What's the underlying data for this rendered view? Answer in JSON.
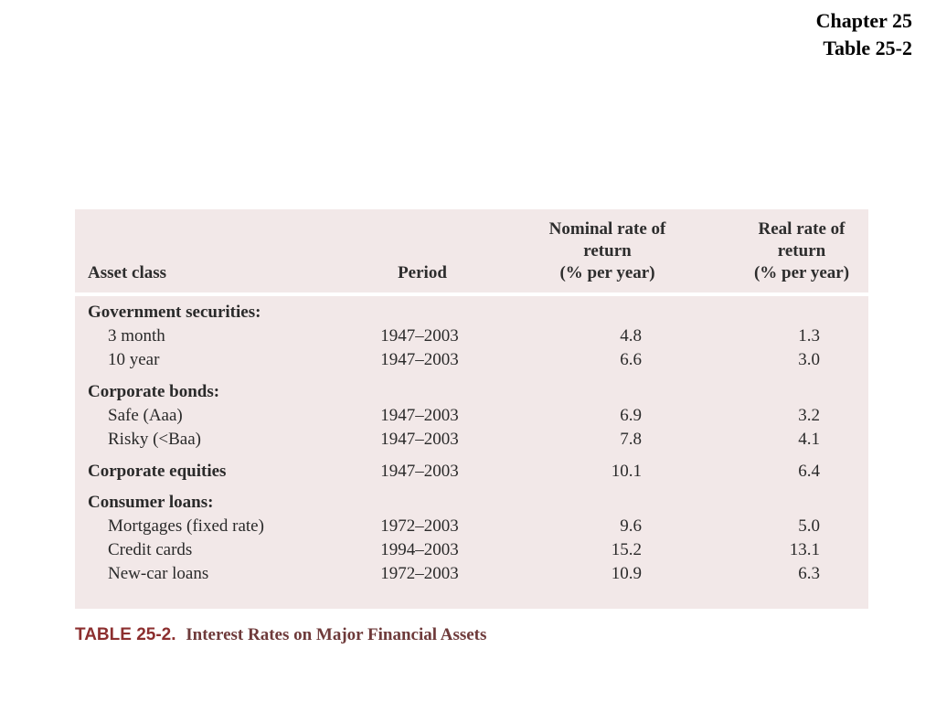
{
  "header": {
    "chapter": "Chapter 25",
    "table_ref": "Table 25-2"
  },
  "table": {
    "columns": {
      "asset_class": "Asset class",
      "period": "Period",
      "nominal": [
        "Nominal rate of",
        "return",
        "(% per year)"
      ],
      "real": [
        "Real rate of",
        "return",
        "(% per year)"
      ]
    },
    "rows": [
      {
        "label": "Government securities:",
        "period": "",
        "nominal": "",
        "real": ""
      },
      {
        "label": "3 month",
        "period": "1947–2003",
        "nominal": "4.8",
        "real": "1.3"
      },
      {
        "label": "10 year",
        "period": "1947–2003",
        "nominal": "6.6",
        "real": "3.0"
      },
      {
        "label": "Corporate bonds:",
        "period": "",
        "nominal": "",
        "real": ""
      },
      {
        "label": "Safe (Aaa)",
        "period": "1947–2003",
        "nominal": "6.9",
        "real": "3.2"
      },
      {
        "label": "Risky (<Baa)",
        "period": "1947–2003",
        "nominal": "7.8",
        "real": "4.1"
      },
      {
        "label": "Corporate equities",
        "period": "1947–2003",
        "nominal": "10.1",
        "real": "6.4"
      },
      {
        "label": "Consumer loans:",
        "period": "",
        "nominal": "",
        "real": ""
      },
      {
        "label": "Mortgages (fixed rate)",
        "period": "1972–2003",
        "nominal": "9.6",
        "real": "5.0"
      },
      {
        "label": "Credit cards",
        "period": "1994–2003",
        "nominal": "15.2",
        "real": "13.1"
      },
      {
        "label": "New-car loans",
        "period": "1972–2003",
        "nominal": "10.9",
        "real": "6.3"
      }
    ]
  },
  "caption": {
    "number": "TABLE 25-2.",
    "title": "Interest Rates on Major Financial Assets"
  }
}
